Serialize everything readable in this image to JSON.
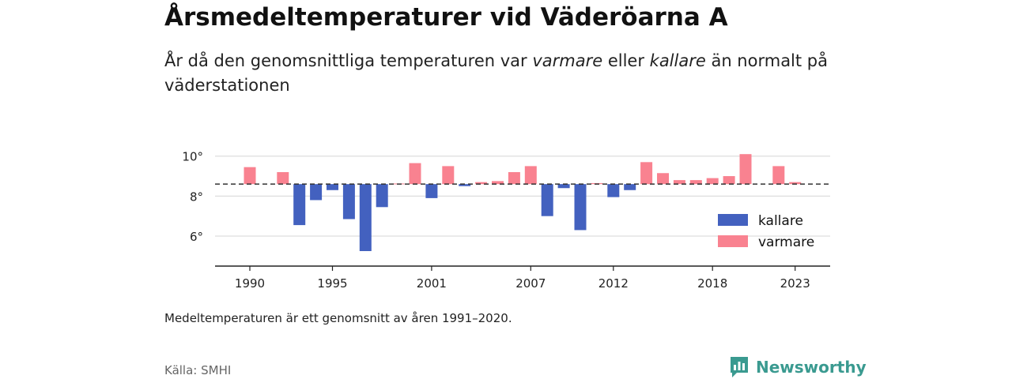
{
  "title": "Årsmedeltemperaturer vid Väderöarna A",
  "subtitle": {
    "part1": "År då den genomsnittliga temperaturen var ",
    "warm_word": "varmare",
    "part2": " eller ",
    "cold_word": "kallare",
    "part3": " än normalt på väderstationen"
  },
  "note": "Medeltemperaturen är ett genomsnitt av åren 1991–2020.",
  "source": "Källa: SMHI",
  "brand": {
    "name": "Newsworthy",
    "icon": "newsworthy-logo-icon"
  },
  "colors": {
    "colder": "#4361bf",
    "warmer": "#f98290",
    "baseline": "#333333",
    "grid": "#dddddd"
  },
  "chart_data": {
    "type": "bar",
    "baseline": 8.6,
    "x": [
      1990,
      1991,
      1992,
      1993,
      1994,
      1995,
      1996,
      1997,
      1998,
      1999,
      2000,
      2001,
      2002,
      2003,
      2004,
      2005,
      2006,
      2007,
      2008,
      2009,
      2010,
      2011,
      2012,
      2013,
      2014,
      2015,
      2016,
      2017,
      2018,
      2019,
      2020,
      2021,
      2022,
      2023
    ],
    "values": [
      9.45,
      8.6,
      9.2,
      6.55,
      7.8,
      8.3,
      6.85,
      5.25,
      7.45,
      8.63,
      9.65,
      7.9,
      9.5,
      8.5,
      8.7,
      8.75,
      9.2,
      9.5,
      7.0,
      8.4,
      6.3,
      8.65,
      7.95,
      8.3,
      9.7,
      9.15,
      8.8,
      8.8,
      8.9,
      9.0,
      10.1,
      8.6,
      9.5,
      8.7
    ],
    "x_ticks": [
      1990,
      1995,
      2001,
      2007,
      2012,
      2018,
      2023
    ],
    "y_ticks": [
      {
        "value": 6,
        "label": "6°"
      },
      {
        "value": 8,
        "label": "8°"
      },
      {
        "value": 10,
        "label": "10°"
      }
    ],
    "ylim": [
      4.5,
      10.7
    ],
    "grid": true,
    "legend": {
      "placement": "bottom-right",
      "items": [
        {
          "name": "kallare",
          "color": "#4361bf"
        },
        {
          "name": "varmare",
          "color": "#f98290"
        }
      ]
    }
  }
}
